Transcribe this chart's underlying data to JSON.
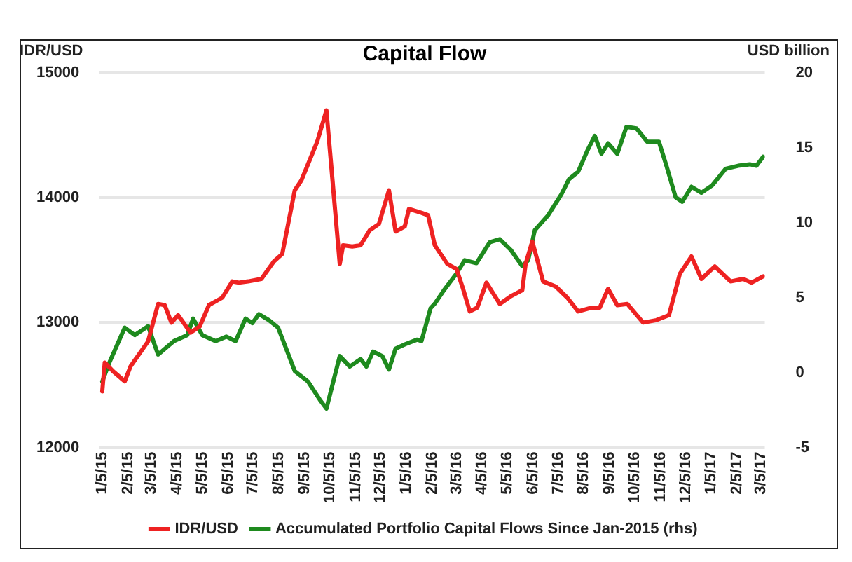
{
  "chart_data": {
    "type": "line",
    "title": "Capital Flow",
    "ylabel": "IDR/USD",
    "y2label": "USD billion",
    "xlim": [
      "2015-01-01",
      "2017-03-10"
    ],
    "xticks": [
      {
        "value": "2015-01-05",
        "label": "1/5/15"
      },
      {
        "value": "2015-02-05",
        "label": "2/5/15"
      },
      {
        "value": "2015-03-05",
        "label": "3/5/15"
      },
      {
        "value": "2015-04-05",
        "label": "4/5/15"
      },
      {
        "value": "2015-05-05",
        "label": "5/5/15"
      },
      {
        "value": "2015-06-05",
        "label": "6/5/15"
      },
      {
        "value": "2015-07-05",
        "label": "7/5/15"
      },
      {
        "value": "2015-08-05",
        "label": "8/5/15"
      },
      {
        "value": "2015-09-05",
        "label": "9/5/15"
      },
      {
        "value": "2015-10-05",
        "label": "10/5/15"
      },
      {
        "value": "2015-11-05",
        "label": "11/5/15"
      },
      {
        "value": "2015-12-05",
        "label": "12/5/15"
      },
      {
        "value": "2016-01-05",
        "label": "1/5/16"
      },
      {
        "value": "2016-02-05",
        "label": "2/5/16"
      },
      {
        "value": "2016-03-05",
        "label": "3/5/16"
      },
      {
        "value": "2016-04-05",
        "label": "4/5/16"
      },
      {
        "value": "2016-05-05",
        "label": "5/5/16"
      },
      {
        "value": "2016-06-05",
        "label": "6/5/16"
      },
      {
        "value": "2016-07-05",
        "label": "7/5/16"
      },
      {
        "value": "2016-08-05",
        "label": "8/5/16"
      },
      {
        "value": "2016-09-05",
        "label": "9/5/16"
      },
      {
        "value": "2016-10-05",
        "label": "10/5/16"
      },
      {
        "value": "2016-11-05",
        "label": "11/5/16"
      },
      {
        "value": "2016-12-05",
        "label": "12/5/16"
      },
      {
        "value": "2017-01-05",
        "label": "1/5/17"
      },
      {
        "value": "2017-02-05",
        "label": "2/5/17"
      },
      {
        "value": "2017-03-05",
        "label": "3/5/17"
      }
    ],
    "ylim": [
      12000,
      15000
    ],
    "yticks": [
      12000,
      13000,
      14000,
      15000
    ],
    "y2lim": [
      -5,
      20
    ],
    "y2ticks": [
      -5,
      0,
      5,
      10,
      15,
      20
    ],
    "grid": "y",
    "legend": "bottom",
    "marker": "none",
    "line_style": "solid",
    "series": [
      {
        "name": "IDR/USD",
        "color": "#ee2222",
        "x": [
          "2015-01-05",
          "2015-01-08",
          "2015-01-18",
          "2015-02-01",
          "2015-02-08",
          "2015-03-01",
          "2015-03-13",
          "2015-03-21",
          "2015-03-29",
          "2015-04-06",
          "2015-04-21",
          "2015-05-02",
          "2015-05-13",
          "2015-05-29",
          "2015-06-10",
          "2015-06-18",
          "2015-06-29",
          "2015-07-15",
          "2015-07-30",
          "2015-08-09",
          "2015-08-24",
          "2015-09-01",
          "2015-09-20",
          "2015-10-01",
          "2015-10-17",
          "2015-10-21",
          "2015-11-01",
          "2015-11-11",
          "2015-11-22",
          "2015-12-03",
          "2015-12-15",
          "2015-12-23",
          "2016-01-03",
          "2016-01-08",
          "2016-01-23",
          "2016-01-31",
          "2016-02-08",
          "2016-02-23",
          "2016-03-05",
          "2016-03-13",
          "2016-03-21",
          "2016-03-30",
          "2016-04-10",
          "2016-04-26",
          "2016-05-09",
          "2016-05-23",
          "2016-05-27",
          "2016-06-04",
          "2016-06-17",
          "2016-07-02",
          "2016-07-16",
          "2016-07-29",
          "2016-08-14",
          "2016-08-24",
          "2016-09-03",
          "2016-09-14",
          "2016-09-26",
          "2016-10-15",
          "2016-10-31",
          "2016-11-15",
          "2016-11-28",
          "2016-12-12",
          "2016-12-24",
          "2017-01-09",
          "2017-01-28",
          "2017-02-12",
          "2017-02-22",
          "2017-03-08"
        ],
        "values": [
          12450,
          12680,
          12610,
          12530,
          12650,
          12850,
          13150,
          13140,
          13000,
          13060,
          12920,
          12970,
          13140,
          13200,
          13330,
          13320,
          13330,
          13350,
          13490,
          13550,
          14060,
          14140,
          14450,
          14700,
          13470,
          13620,
          13610,
          13620,
          13740,
          13790,
          14060,
          13730,
          13770,
          13910,
          13880,
          13860,
          13620,
          13470,
          13430,
          13270,
          13090,
          13120,
          13320,
          13150,
          13210,
          13260,
          13470,
          13650,
          13330,
          13290,
          13200,
          13090,
          13120,
          13120,
          13270,
          13140,
          13150,
          13000,
          13020,
          13060,
          13390,
          13530,
          13350,
          13450,
          13330,
          13350,
          13320,
          13370
        ]
      },
      {
        "name": "Accumulated Portfolio Capital Flows Since Jan-2015 (rhs)",
        "color": "#1e8a1e",
        "axis": "y2",
        "x": [
          "2015-01-05",
          "2015-01-13",
          "2015-02-01",
          "2015-02-13",
          "2015-03-01",
          "2015-03-13",
          "2015-04-01",
          "2015-04-17",
          "2015-04-24",
          "2015-05-05",
          "2015-05-21",
          "2015-06-03",
          "2015-06-14",
          "2015-06-26",
          "2015-07-04",
          "2015-07-12",
          "2015-07-24",
          "2015-08-04",
          "2015-08-24",
          "2015-09-09",
          "2015-09-23",
          "2015-10-01",
          "2015-10-17",
          "2015-10-29",
          "2015-11-11",
          "2015-11-18",
          "2015-11-26",
          "2015-12-07",
          "2015-12-15",
          "2015-12-23",
          "2016-01-04",
          "2016-01-18",
          "2016-01-23",
          "2016-02-03",
          "2016-02-08",
          "2016-02-19",
          "2016-03-05",
          "2016-03-15",
          "2016-03-29",
          "2016-04-14",
          "2016-04-26",
          "2016-05-09",
          "2016-05-23",
          "2016-05-30",
          "2016-06-07",
          "2016-06-23",
          "2016-07-09",
          "2016-07-18",
          "2016-07-29",
          "2016-08-09",
          "2016-08-18",
          "2016-08-26",
          "2016-09-03",
          "2016-09-14",
          "2016-09-25",
          "2016-10-07",
          "2016-10-20",
          "2016-11-03",
          "2016-11-12",
          "2016-11-23",
          "2016-12-01",
          "2016-12-12",
          "2016-12-24",
          "2017-01-06",
          "2017-01-22",
          "2017-02-06",
          "2017-02-20",
          "2017-02-28",
          "2017-03-08"
        ],
        "values": [
          -0.6,
          0.6,
          3.0,
          2.5,
          3.1,
          1.2,
          2.1,
          2.5,
          3.6,
          2.5,
          2.1,
          2.4,
          2.1,
          3.6,
          3.3,
          3.9,
          3.5,
          3.0,
          0.1,
          -0.6,
          -1.8,
          -2.4,
          1.1,
          0.4,
          0.9,
          0.4,
          1.4,
          1.1,
          0.2,
          1.6,
          1.9,
          2.2,
          2.1,
          4.3,
          4.6,
          5.5,
          6.6,
          7.5,
          7.3,
          8.7,
          8.9,
          8.2,
          7.1,
          7.5,
          9.5,
          10.5,
          11.9,
          12.9,
          13.4,
          14.8,
          15.8,
          14.6,
          15.3,
          14.6,
          16.4,
          16.3,
          15.4,
          15.4,
          13.8,
          11.7,
          11.4,
          12.4,
          12.0,
          12.5,
          13.6,
          13.8,
          13.9,
          13.8,
          14.4
        ]
      }
    ]
  }
}
